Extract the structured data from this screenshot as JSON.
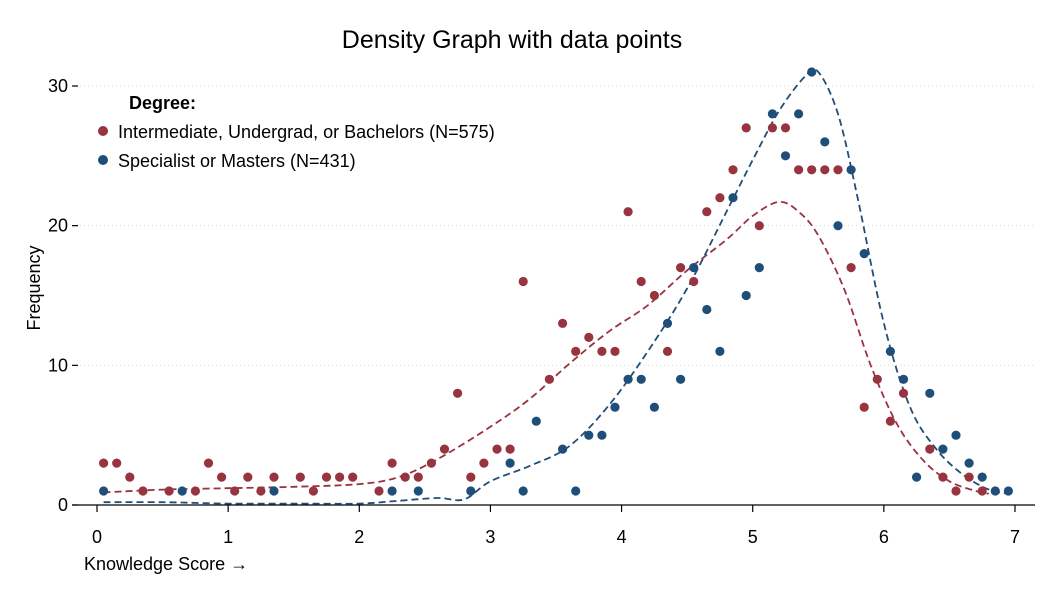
{
  "chart_data": {
    "type": "scatter",
    "title": "Density Graph with data points",
    "xlabel": "Knowledge Score →",
    "ylabel": "Frequency",
    "xlim": [
      0,
      7
    ],
    "ylim": [
      0,
      30
    ],
    "xticks": [
      0,
      1,
      2,
      3,
      4,
      5,
      6,
      7
    ],
    "yticks": [
      0,
      10,
      20,
      30
    ],
    "grid": true,
    "legend": {
      "title": "Degree:",
      "position": "top-left"
    },
    "series": [
      {
        "name": "Intermediate, Undergrad, or Bachelors (N=575)",
        "color": "#97343f",
        "points": [
          [
            0.05,
            3
          ],
          [
            0.15,
            3
          ],
          [
            0.25,
            2
          ],
          [
            0.35,
            1
          ],
          [
            0.55,
            1
          ],
          [
            0.75,
            1
          ],
          [
            0.85,
            3
          ],
          [
            0.95,
            2
          ],
          [
            1.05,
            1
          ],
          [
            1.15,
            2
          ],
          [
            1.25,
            1
          ],
          [
            1.35,
            2
          ],
          [
            1.55,
            2
          ],
          [
            1.65,
            1
          ],
          [
            1.75,
            2
          ],
          [
            1.85,
            2
          ],
          [
            1.95,
            2
          ],
          [
            2.15,
            1
          ],
          [
            2.25,
            3
          ],
          [
            2.35,
            2
          ],
          [
            2.45,
            2
          ],
          [
            2.55,
            3
          ],
          [
            2.65,
            4
          ],
          [
            2.75,
            8
          ],
          [
            2.85,
            2
          ],
          [
            2.95,
            3
          ],
          [
            3.05,
            4
          ],
          [
            3.15,
            4
          ],
          [
            3.25,
            16
          ],
          [
            3.45,
            9
          ],
          [
            3.55,
            13
          ],
          [
            3.65,
            11
          ],
          [
            3.75,
            12
          ],
          [
            3.85,
            11
          ],
          [
            3.95,
            11
          ],
          [
            4.05,
            21
          ],
          [
            4.15,
            16
          ],
          [
            4.25,
            15
          ],
          [
            4.35,
            11
          ],
          [
            4.45,
            17
          ],
          [
            4.55,
            16
          ],
          [
            4.65,
            21
          ],
          [
            4.75,
            22
          ],
          [
            4.85,
            24
          ],
          [
            4.95,
            27
          ],
          [
            5.05,
            20
          ],
          [
            5.15,
            27
          ],
          [
            5.25,
            27
          ],
          [
            5.35,
            24
          ],
          [
            5.45,
            24
          ],
          [
            5.55,
            24
          ],
          [
            5.65,
            24
          ],
          [
            5.75,
            17
          ],
          [
            5.85,
            7
          ],
          [
            5.95,
            9
          ],
          [
            6.05,
            6
          ],
          [
            6.15,
            8
          ],
          [
            6.35,
            4
          ],
          [
            6.45,
            2
          ],
          [
            6.55,
            1
          ],
          [
            6.65,
            2
          ],
          [
            6.75,
            1
          ]
        ],
        "density": [
          [
            0.05,
            0.9
          ],
          [
            0.5,
            1.1
          ],
          [
            1.0,
            1.2
          ],
          [
            1.5,
            1.3
          ],
          [
            2.0,
            1.5
          ],
          [
            2.3,
            2.0
          ],
          [
            2.6,
            3.3
          ],
          [
            3.0,
            5.6
          ],
          [
            3.3,
            7.6
          ],
          [
            3.6,
            10.1
          ],
          [
            3.9,
            12.4
          ],
          [
            4.2,
            14.3
          ],
          [
            4.5,
            16.8
          ],
          [
            4.8,
            19.0
          ],
          [
            5.0,
            20.7
          ],
          [
            5.2,
            21.7
          ],
          [
            5.35,
            21.0
          ],
          [
            5.5,
            19.3
          ],
          [
            5.7,
            15.4
          ],
          [
            5.9,
            10.0
          ],
          [
            6.1,
            5.8
          ],
          [
            6.3,
            3.2
          ],
          [
            6.5,
            1.7
          ],
          [
            6.7,
            1.0
          ],
          [
            6.8,
            0.8
          ]
        ]
      },
      {
        "name": "Specialist or Masters (N=431)",
        "color": "#1f4e79",
        "points": [
          [
            0.05,
            1
          ],
          [
            0.65,
            1
          ],
          [
            1.35,
            1
          ],
          [
            2.25,
            1
          ],
          [
            2.45,
            1
          ],
          [
            2.85,
            1
          ],
          [
            3.15,
            3
          ],
          [
            3.25,
            1
          ],
          [
            3.35,
            6
          ],
          [
            3.55,
            4
          ],
          [
            3.65,
            1
          ],
          [
            3.75,
            5
          ],
          [
            3.85,
            5
          ],
          [
            3.95,
            7
          ],
          [
            4.05,
            9
          ],
          [
            4.15,
            9
          ],
          [
            4.25,
            7
          ],
          [
            4.35,
            13
          ],
          [
            4.45,
            9
          ],
          [
            4.55,
            17
          ],
          [
            4.65,
            14
          ],
          [
            4.75,
            11
          ],
          [
            4.85,
            22
          ],
          [
            4.95,
            15
          ],
          [
            5.05,
            17
          ],
          [
            5.15,
            28
          ],
          [
            5.25,
            25
          ],
          [
            5.35,
            28
          ],
          [
            5.45,
            31
          ],
          [
            5.55,
            26
          ],
          [
            5.65,
            20
          ],
          [
            5.75,
            24
          ],
          [
            5.85,
            18
          ],
          [
            6.05,
            11
          ],
          [
            6.15,
            9
          ],
          [
            6.25,
            2
          ],
          [
            6.35,
            8
          ],
          [
            6.45,
            4
          ],
          [
            6.55,
            5
          ],
          [
            6.65,
            3
          ],
          [
            6.75,
            2
          ],
          [
            6.85,
            1
          ],
          [
            6.95,
            1
          ]
        ],
        "density": [
          [
            0.05,
            0.2
          ],
          [
            0.5,
            0.2
          ],
          [
            1.0,
            0.1
          ],
          [
            1.5,
            0.1
          ],
          [
            2.0,
            0.1
          ],
          [
            2.3,
            0.3
          ],
          [
            2.6,
            0.5
          ],
          [
            2.8,
            0.4
          ],
          [
            3.0,
            1.7
          ],
          [
            3.3,
            2.8
          ],
          [
            3.6,
            4.2
          ],
          [
            3.9,
            7.1
          ],
          [
            4.2,
            11.0
          ],
          [
            4.5,
            15.5
          ],
          [
            4.8,
            21.0
          ],
          [
            5.0,
            24.7
          ],
          [
            5.2,
            28.2
          ],
          [
            5.4,
            30.7
          ],
          [
            5.5,
            31.0
          ],
          [
            5.65,
            28.0
          ],
          [
            5.8,
            22.0
          ],
          [
            6.0,
            13.0
          ],
          [
            6.2,
            7.0
          ],
          [
            6.4,
            4.0
          ],
          [
            6.6,
            2.2
          ],
          [
            6.8,
            1.1
          ],
          [
            6.95,
            0.8
          ]
        ]
      }
    ]
  }
}
